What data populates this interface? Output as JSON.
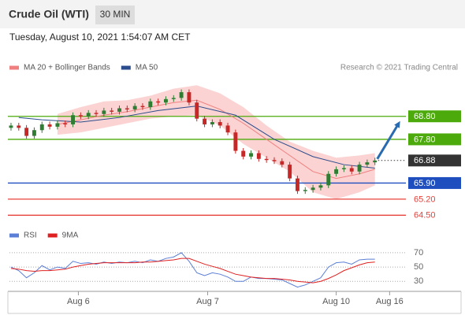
{
  "header": {
    "title": "Crude Oil (WTI)",
    "timeframe": "30 MIN",
    "timestamp": "Tuesday, August 10, 2021 1:54:07 AM CET"
  },
  "credit": "Research © 2021 Trading Central",
  "chart_data": [
    {
      "type": "candlestick",
      "up_color": "#2e7d32",
      "down_color": "#c62828",
      "xlim": [
        -0.2,
        51
      ],
      "ylim": [
        64.1,
        70.4
      ],
      "ohlc": [
        [
          68.3,
          68.52,
          68.18,
          68.4
        ],
        [
          68.4,
          68.52,
          68.18,
          68.3
        ],
        [
          68.3,
          68.42,
          67.83,
          67.95
        ],
        [
          67.95,
          68.32,
          67.83,
          68.2
        ],
        [
          68.2,
          68.57,
          68.08,
          68.45
        ],
        [
          68.45,
          68.57,
          68.23,
          68.35
        ],
        [
          68.35,
          68.62,
          68.23,
          68.5
        ],
        [
          68.5,
          68.62,
          68.33,
          68.45
        ],
        [
          68.45,
          68.97,
          68.33,
          68.85
        ],
        [
          68.85,
          68.97,
          68.68,
          68.8
        ],
        [
          68.8,
          69.07,
          68.68,
          68.95
        ],
        [
          68.95,
          69.07,
          68.78,
          68.9
        ],
        [
          68.9,
          69.17,
          68.78,
          69.05
        ],
        [
          69.05,
          69.17,
          68.88,
          69.0
        ],
        [
          69.0,
          69.27,
          68.88,
          69.15
        ],
        [
          69.15,
          69.27,
          68.98,
          69.1
        ],
        [
          69.1,
          69.37,
          68.98,
          69.25
        ],
        [
          69.25,
          69.37,
          69.08,
          69.2
        ],
        [
          69.2,
          69.57,
          69.08,
          69.45
        ],
        [
          69.45,
          69.57,
          69.28,
          69.4
        ],
        [
          69.4,
          69.67,
          69.28,
          69.55
        ],
        [
          69.55,
          69.72,
          69.43,
          69.6
        ],
        [
          69.6,
          69.97,
          69.48,
          69.85
        ],
        [
          69.85,
          69.97,
          69.28,
          69.4
        ],
        [
          69.4,
          69.52,
          68.58,
          68.7
        ],
        [
          68.7,
          68.82,
          68.33,
          68.45
        ],
        [
          68.45,
          68.67,
          68.33,
          68.55
        ],
        [
          68.55,
          68.67,
          68.28,
          68.4
        ],
        [
          68.4,
          68.52,
          67.98,
          68.1
        ],
        [
          68.1,
          68.22,
          67.18,
          67.3
        ],
        [
          67.3,
          67.42,
          66.93,
          67.05
        ],
        [
          67.05,
          67.32,
          66.93,
          67.2
        ],
        [
          67.2,
          67.32,
          66.83,
          66.95
        ],
        [
          66.95,
          67.07,
          66.78,
          66.9
        ],
        [
          66.9,
          67.02,
          66.73,
          66.85
        ],
        [
          66.85,
          66.97,
          66.58,
          66.7
        ],
        [
          66.7,
          66.82,
          65.98,
          66.1
        ],
        [
          66.1,
          66.22,
          65.43,
          65.55
        ],
        [
          65.55,
          65.72,
          65.43,
          65.6
        ],
        [
          65.6,
          65.82,
          65.48,
          65.7
        ],
        [
          65.7,
          65.92,
          65.58,
          65.8
        ],
        [
          65.8,
          66.42,
          65.68,
          66.3
        ],
        [
          66.3,
          66.62,
          66.18,
          66.5
        ],
        [
          66.5,
          66.67,
          66.38,
          66.55
        ],
        [
          66.55,
          66.67,
          66.28,
          66.4
        ],
        [
          66.4,
          66.82,
          66.28,
          66.7
        ],
        [
          66.7,
          66.92,
          66.58,
          66.8
        ],
        [
          66.8,
          67.0,
          66.68,
          66.88
        ]
      ],
      "series": [
        {
          "name": "MA 20 + Bollinger Bands",
          "color": "#f08080",
          "band_color": "#fbd3d3",
          "x": [
            6,
            9,
            12,
            15,
            18,
            21,
            24,
            27,
            30,
            33,
            36,
            39,
            42,
            45,
            47
          ],
          "values": [
            68.45,
            68.65,
            68.85,
            69.0,
            69.2,
            69.4,
            69.5,
            69.1,
            68.5,
            67.8,
            67.1,
            66.4,
            66.1,
            66.3,
            66.5
          ],
          "band_upper": [
            68.9,
            69.2,
            69.45,
            69.5,
            69.7,
            70.0,
            70.15,
            69.8,
            69.2,
            68.4,
            67.7,
            67.3,
            67.0,
            67.1,
            67.2
          ],
          "band_lower": [
            68.0,
            68.1,
            68.3,
            68.5,
            68.7,
            68.8,
            68.85,
            68.4,
            67.6,
            67.0,
            66.4,
            65.5,
            65.2,
            65.5,
            65.8
          ]
        },
        {
          "name": "MA 50",
          "color": "#2b4c8c",
          "x": [
            1,
            4,
            9,
            14,
            19,
            24,
            29,
            34,
            39,
            43,
            47
          ],
          "values": [
            68.75,
            68.65,
            68.55,
            68.75,
            69.05,
            69.25,
            68.85,
            67.8,
            67.05,
            66.7,
            66.55
          ]
        }
      ],
      "levels": [
        {
          "value": 68.8,
          "label": "68.80",
          "color": "#4caa0c",
          "boxed": true,
          "line": "solid"
        },
        {
          "value": 67.8,
          "label": "67.80",
          "color": "#4caa0c",
          "boxed": true,
          "line": "solid"
        },
        {
          "value": 66.88,
          "label": "66.88",
          "color": "#333333",
          "boxed": true,
          "line": "dotted"
        },
        {
          "value": 65.9,
          "label": "65.90",
          "color": "#1f4fbf",
          "boxed": true,
          "line": "solid"
        },
        {
          "value": 65.2,
          "label": "65.20",
          "color": "#e8403a",
          "boxed": false,
          "line": "solid"
        },
        {
          "value": 64.5,
          "label": "64.50",
          "color": "#e8403a",
          "boxed": false,
          "line": "solid"
        }
      ],
      "arrow_color": "#2a6bb0"
    },
    {
      "type": "line",
      "xlim": [
        -0.2,
        51
      ],
      "ylim": [
        16,
        82
      ],
      "yticks": [
        30,
        50,
        70
      ],
      "xticks": [
        {
          "value": 8.7,
          "label": "Aug 6"
        },
        {
          "value": 25.4,
          "label": "Aug 7"
        },
        {
          "value": 42.0,
          "label": "Aug 10"
        },
        {
          "value": 48.9,
          "label": "Aug 16"
        }
      ],
      "series": [
        {
          "name": "RSI",
          "color": "#5b7fd6",
          "values": [
            50,
            45,
            35,
            42,
            52,
            46,
            50,
            48,
            58,
            55,
            56,
            54,
            57,
            55,
            57,
            56,
            58,
            56,
            60,
            58,
            62,
            64,
            70,
            58,
            42,
            38,
            42,
            40,
            36,
            30,
            30,
            36,
            34,
            34,
            33,
            32,
            27,
            22,
            25,
            30,
            35,
            50,
            56,
            57,
            54,
            60,
            61,
            61
          ]
        },
        {
          "name": "9MA",
          "color": "#e02020",
          "values": [
            48,
            47,
            45,
            44,
            45,
            45,
            46,
            47,
            50,
            52,
            54,
            55,
            56,
            56,
            56,
            56,
            56,
            57,
            57,
            58,
            59,
            60,
            62,
            62,
            58,
            54,
            51,
            48,
            44,
            40,
            38,
            36,
            35,
            34,
            34,
            33,
            32,
            30,
            29,
            28,
            30,
            34,
            39,
            45,
            49,
            53,
            56,
            57
          ]
        }
      ]
    }
  ]
}
